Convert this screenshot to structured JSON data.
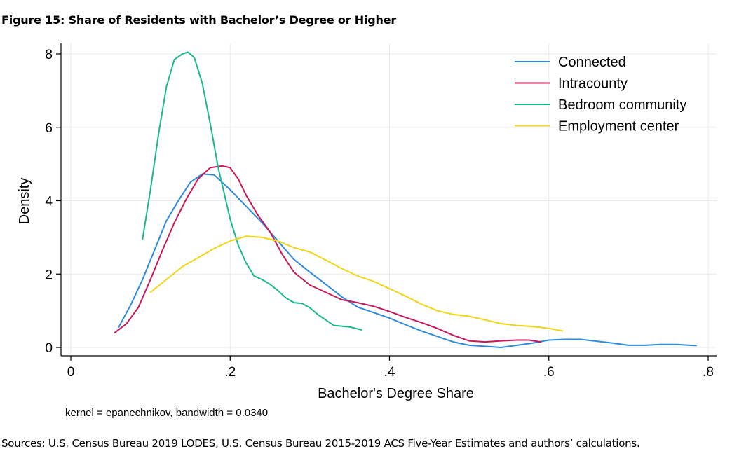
{
  "figure": {
    "title": "Figure 15: Share of Residents with Bachelor’s Degree or Higher",
    "sources": "Sources: U.S. Census Bureau 2019 LODES, U.S. Census Bureau 2015-2019 ACS Five-Year Estimates and authors’ calculations."
  },
  "chart_data": {
    "type": "line",
    "title": "",
    "xlabel": "Bachelor's Degree Share",
    "ylabel": "Density",
    "note": "kernel = epanechnikov, bandwidth = 0.0340",
    "xlim": [
      0,
      0.8
    ],
    "ylim": [
      0,
      8
    ],
    "xticks": [
      0,
      0.2,
      0.4,
      0.6,
      0.8
    ],
    "xtick_labels": [
      "0",
      ".2",
      ".4",
      ".6",
      ".8"
    ],
    "yticks": [
      0,
      2,
      4,
      6,
      8
    ],
    "ytick_labels": [
      "0",
      "2",
      "4",
      "6",
      "8"
    ],
    "grid": true,
    "legend_position": "top-right",
    "series": [
      {
        "name": "Connected",
        "color": "#2e8bdc",
        "x": [
          0.06,
          0.075,
          0.09,
          0.105,
          0.12,
          0.135,
          0.15,
          0.165,
          0.18,
          0.2,
          0.22,
          0.24,
          0.26,
          0.28,
          0.3,
          0.32,
          0.34,
          0.36,
          0.38,
          0.4,
          0.42,
          0.44,
          0.46,
          0.48,
          0.5,
          0.52,
          0.54,
          0.56,
          0.58,
          0.6,
          0.62,
          0.64,
          0.66,
          0.68,
          0.7,
          0.72,
          0.74,
          0.76,
          0.785
        ],
        "y": [
          0.55,
          1.15,
          1.85,
          2.65,
          3.45,
          4.0,
          4.5,
          4.73,
          4.7,
          4.3,
          3.85,
          3.4,
          2.9,
          2.4,
          2.05,
          1.72,
          1.38,
          1.1,
          0.95,
          0.8,
          0.62,
          0.45,
          0.3,
          0.15,
          0.06,
          0.03,
          0.0,
          0.06,
          0.12,
          0.2,
          0.22,
          0.22,
          0.17,
          0.12,
          0.06,
          0.06,
          0.08,
          0.08,
          0.05
        ]
      },
      {
        "name": "Intracounty",
        "color": "#c8185a",
        "x": [
          0.055,
          0.07,
          0.085,
          0.1,
          0.115,
          0.13,
          0.145,
          0.16,
          0.175,
          0.19,
          0.2,
          0.21,
          0.22,
          0.235,
          0.25,
          0.265,
          0.28,
          0.3,
          0.32,
          0.34,
          0.36,
          0.38,
          0.4,
          0.42,
          0.44,
          0.46,
          0.48,
          0.5,
          0.52,
          0.54,
          0.56,
          0.575,
          0.59
        ],
        "y": [
          0.4,
          0.65,
          1.1,
          1.85,
          2.65,
          3.4,
          4.05,
          4.6,
          4.9,
          4.95,
          4.9,
          4.6,
          4.15,
          3.6,
          3.15,
          2.55,
          2.05,
          1.7,
          1.5,
          1.3,
          1.22,
          1.12,
          0.98,
          0.82,
          0.68,
          0.52,
          0.33,
          0.18,
          0.15,
          0.18,
          0.2,
          0.2,
          0.15
        ]
      },
      {
        "name": "Bedroom community",
        "color": "#1bb78f",
        "x": [
          0.09,
          0.1,
          0.11,
          0.12,
          0.13,
          0.14,
          0.147,
          0.155,
          0.165,
          0.175,
          0.185,
          0.2,
          0.21,
          0.22,
          0.23,
          0.24,
          0.25,
          0.26,
          0.27,
          0.28,
          0.29,
          0.3,
          0.31,
          0.32,
          0.33,
          0.34,
          0.35,
          0.365
        ],
        "y": [
          2.95,
          4.3,
          5.8,
          7.1,
          7.85,
          8.0,
          8.05,
          7.9,
          7.2,
          6.1,
          4.9,
          3.5,
          2.8,
          2.3,
          1.95,
          1.85,
          1.72,
          1.55,
          1.35,
          1.22,
          1.2,
          1.08,
          0.9,
          0.75,
          0.6,
          0.58,
          0.56,
          0.48
        ]
      },
      {
        "name": "Employment center",
        "color": "#f0d619",
        "x": [
          0.1,
          0.12,
          0.14,
          0.16,
          0.18,
          0.2,
          0.22,
          0.24,
          0.26,
          0.28,
          0.3,
          0.32,
          0.34,
          0.36,
          0.38,
          0.4,
          0.42,
          0.44,
          0.46,
          0.48,
          0.5,
          0.52,
          0.54,
          0.56,
          0.58,
          0.6,
          0.617
        ],
        "y": [
          1.5,
          1.85,
          2.2,
          2.45,
          2.7,
          2.9,
          3.03,
          3.0,
          2.9,
          2.72,
          2.6,
          2.38,
          2.15,
          1.95,
          1.8,
          1.6,
          1.4,
          1.18,
          1.0,
          0.9,
          0.85,
          0.75,
          0.65,
          0.6,
          0.57,
          0.52,
          0.45
        ]
      }
    ]
  }
}
